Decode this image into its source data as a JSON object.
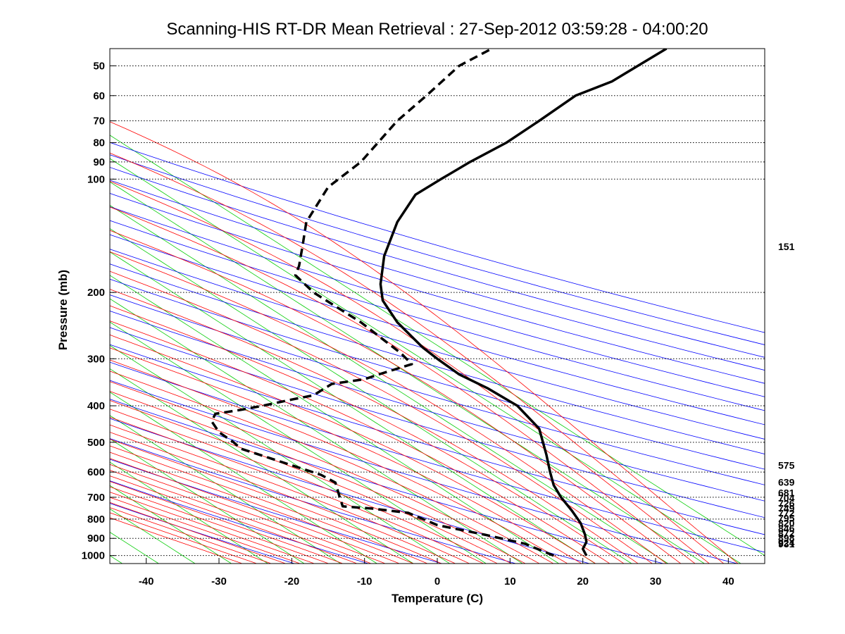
{
  "chart_data": {
    "type": "line",
    "title": "Scanning-HIS RT-DR Mean Retrieval : 27-Sep-2012 03:59:28 - 04:00:20",
    "xlabel": "Temperature (C)",
    "ylabel": "Pressure (mb)",
    "xlim": [
      -45,
      45
    ],
    "ylim": [
      1050,
      45
    ],
    "y_scale": "log",
    "x_ticks": [
      -40,
      -30,
      -20,
      -10,
      0,
      10,
      20,
      30,
      40
    ],
    "y_ticks": [
      50,
      60,
      70,
      80,
      90,
      100,
      200,
      300,
      400,
      500,
      600,
      700,
      800,
      900,
      1000
    ],
    "pressure_gridlines": [
      50,
      60,
      70,
      80,
      90,
      100,
      200,
      300,
      400,
      500,
      600,
      700,
      800,
      900,
      1000
    ],
    "grid": "dotted horizontal at pressure ticks",
    "right_labels": [
      "151",
      "575",
      "639",
      "681",
      "704",
      "726",
      "749",
      "772",
      "795",
      "820",
      "846",
      "872",
      "898",
      "924",
      "931"
    ],
    "series": [
      {
        "style": "solid-black",
        "x": [
          20.5,
          20.0,
          20.5,
          20.3,
          19.7,
          18.5,
          17.0,
          16.0,
          15.5,
          15.0,
          14.0,
          11.0,
          7.0,
          3.0,
          0.0,
          -2.0,
          -5.5,
          -7.5,
          -7.8,
          -7.3,
          -5.5,
          -3.0,
          0.5,
          4.5,
          9.5,
          14.0,
          19.0,
          24.0,
          31.5
        ],
        "y": [
          1000,
          960,
          920,
          880,
          820,
          760,
          700,
          650,
          600,
          540,
          460,
          400,
          360,
          330,
          300,
          280,
          240,
          210,
          190,
          160,
          130,
          110,
          100,
          90,
          80,
          70,
          60,
          55,
          45
        ]
      },
      {
        "style": "dashed-black",
        "x": [
          16.0,
          12.0,
          6.5,
          0.0,
          -4.0,
          -9.0,
          -13.0,
          -13.5,
          -14.0,
          -16.0,
          -27.0,
          -28.0,
          -30.0,
          -31.0,
          -30.5,
          -27.0,
          -24.0,
          -20.0,
          -17.0,
          -14.5,
          -10.0,
          -8.0,
          -3.5,
          -5.0,
          -10.5,
          -17.0,
          -19.5,
          -19.0,
          -18.5,
          -18.0,
          -15.0,
          -10.5,
          -5.5,
          -1.5,
          3.0,
          7.5
        ],
        "y": [
          1000,
          930,
          880,
          830,
          770,
          750,
          740,
          690,
          640,
          610,
          520,
          500,
          470,
          440,
          420,
          410,
          400,
          385,
          375,
          350,
          340,
          330,
          310,
          290,
          240,
          200,
          180,
          170,
          150,
          130,
          105,
          90,
          70,
          60,
          50,
          45
        ]
      }
    ],
    "colors": {
      "dry_adiabat": "#0000ff",
      "moist_adiabat": "#ff0000",
      "mixing_ratio": "#00cc00",
      "sounding": "#000000"
    }
  }
}
